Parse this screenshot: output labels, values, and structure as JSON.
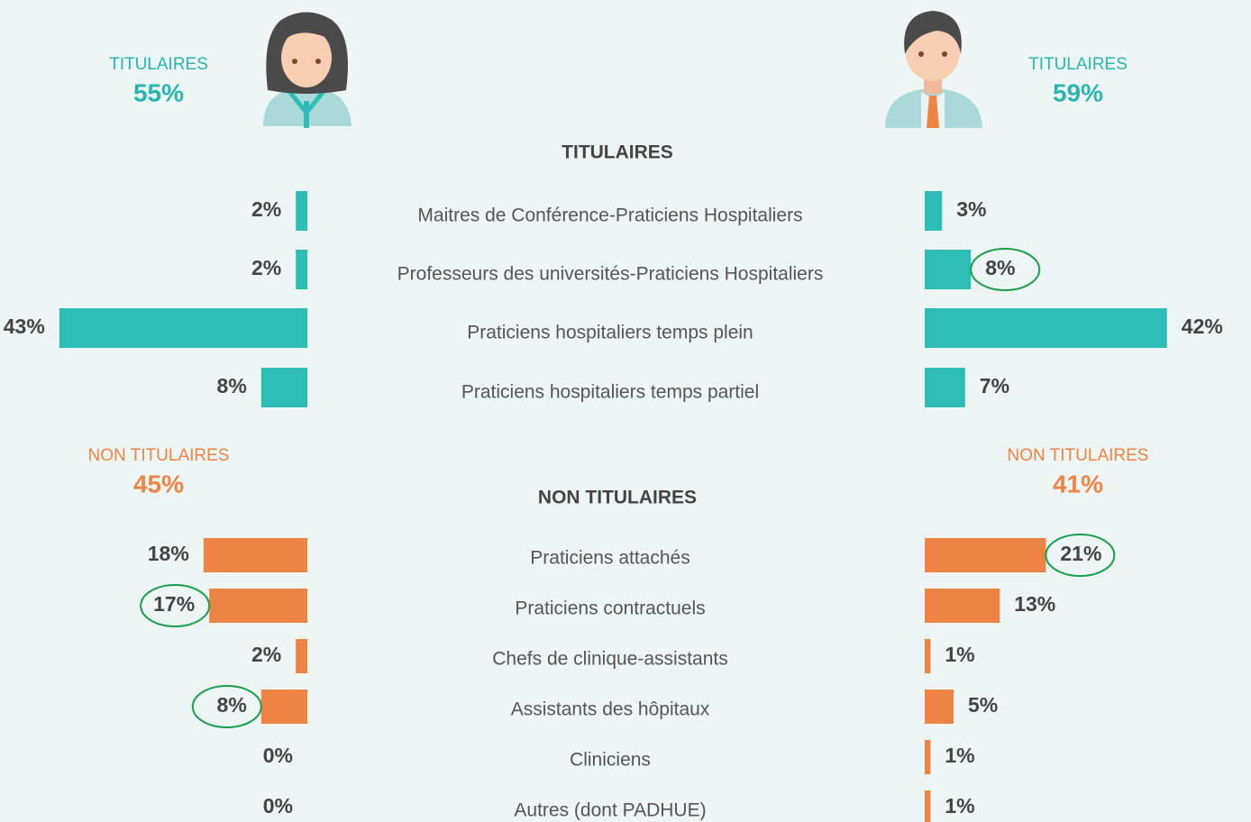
{
  "chart_data": [
    {
      "type": "butterfly",
      "title": "TITULAIRES",
      "label": "TITULAIRES",
      "totals": [
        55,
        59
      ],
      "total_labels": [
        "55%",
        "59%"
      ],
      "total_color": "#2ab5ae",
      "categories": [
        "Maitres de Conférence-Praticiens Hospitaliers",
        "Professeurs des universités-Praticiens Hospitaliers",
        "Praticiens hospitaliers temps plein",
        "Praticiens hospitaliers temps partiel"
      ],
      "highlight_color": "#1a9e4a",
      "series": [
        {
          "color": "#2ebdb5",
          "values": [
            2,
            2,
            43,
            8
          ],
          "value_labels": [
            "2%",
            "2%",
            "43%",
            "8%"
          ],
          "highlight": []
        },
        {
          "color": "#2ebdb5",
          "values": [
            3,
            8,
            42,
            7
          ],
          "value_labels": [
            "3%",
            "8%",
            "42%",
            "7%"
          ],
          "highlight": [
            1
          ]
        }
      ]
    },
    {
      "type": "butterfly",
      "title": "NON TITULAIRES",
      "label": "NON TITULAIRES",
      "totals": [
        45,
        41
      ],
      "total_labels": [
        "45%",
        "41%"
      ],
      "total_color": "#ee8443",
      "categories": [
        "Praticiens attachés",
        "Praticiens contractuels",
        "Chefs de clinique-assistants",
        "Assistants des hôpitaux",
        "Cliniciens",
        "Autres (dont PADHUE)"
      ],
      "highlight_color": "#1a9e4a",
      "series": [
        {
          "color": "#ee8443",
          "values": [
            18,
            17,
            2,
            8,
            0,
            0
          ],
          "value_labels": [
            "18%",
            "17%",
            "2%",
            "8%",
            "0%",
            "0%"
          ],
          "highlight": [
            1,
            3
          ]
        },
        {
          "color": "#ee8443",
          "values": [
            21,
            13,
            1,
            5,
            1,
            1
          ],
          "value_labels": [
            "21%",
            "13%",
            "1%",
            "5%",
            "1%",
            "1%"
          ],
          "highlight": [
            0
          ]
        }
      ]
    }
  ]
}
